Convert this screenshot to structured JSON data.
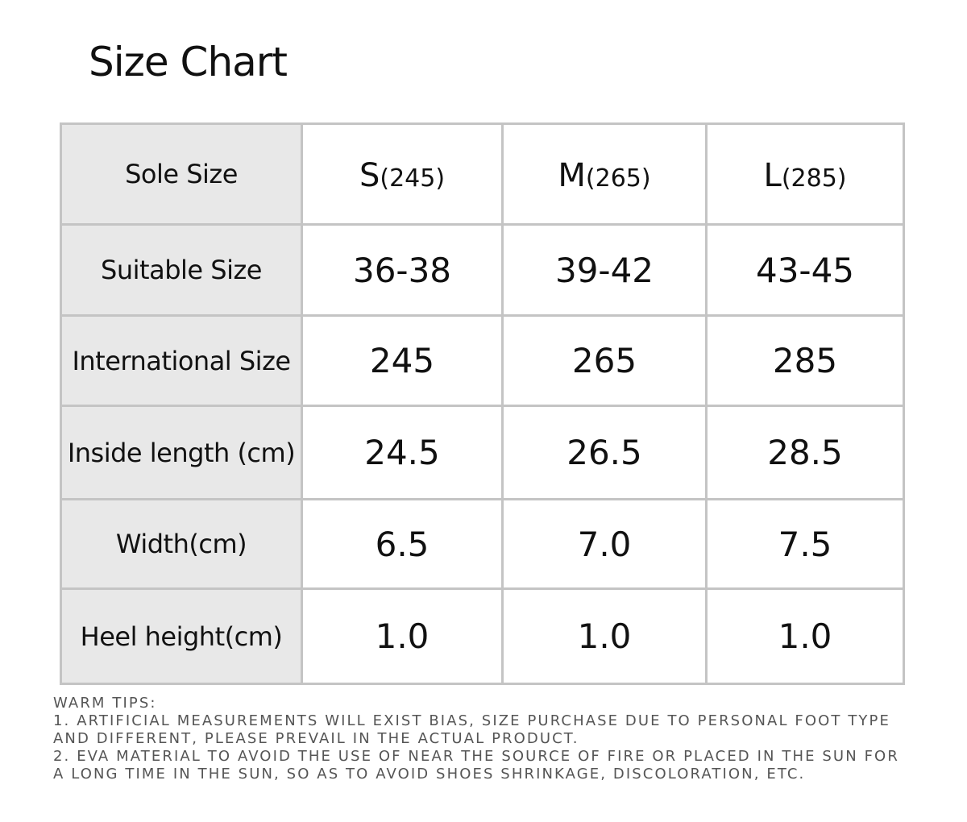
{
  "title": "Size Chart",
  "table": {
    "header": {
      "label": "Sole Size",
      "sizes": [
        {
          "size": "S",
          "note": "(245)"
        },
        {
          "size": "M",
          "note": "(265)"
        },
        {
          "size": "L",
          "note": "(285)"
        }
      ]
    },
    "rows": [
      [
        "Suitable Size",
        "36-38",
        "39-42",
        "43-45"
      ],
      [
        "International Size",
        "245",
        "265",
        "285"
      ],
      [
        "Inside length (cm)",
        "24.5",
        "26.5",
        "28.5"
      ],
      [
        "Width(cm)",
        "6.5",
        "7.0",
        "7.5"
      ],
      [
        "Heel height(cm)",
        "1.0",
        "1.0",
        "1.0"
      ]
    ]
  },
  "tips": {
    "heading": "WARM TIPS:",
    "lines": [
      "1. ARTIFICIAL MEASUREMENTS WILL EXIST BIAS, SIZE PURCHASE DUE TO PERSONAL FOOT TYPE",
      "AND DIFFERENT, PLEASE PREVAIL IN THE ACTUAL PRODUCT.",
      "2. EVA MATERIAL TO AVOID THE USE OF NEAR THE SOURCE OF FIRE OR PLACED IN THE SUN FOR",
      "A LONG TIME IN THE SUN, SO AS TO AVOID SHOES SHRINKAGE, DISCOLORATION, ETC."
    ]
  }
}
